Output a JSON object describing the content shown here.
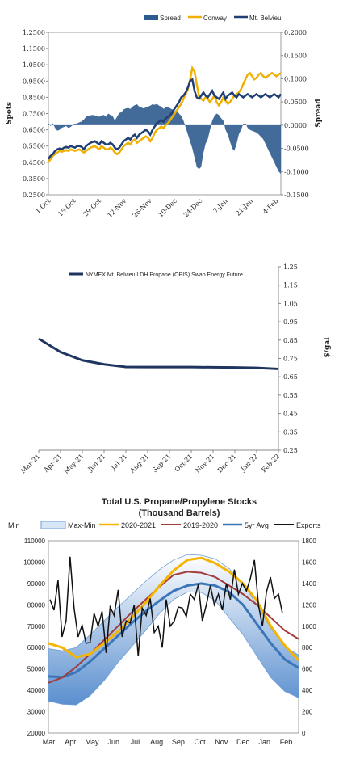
{
  "chart_data": [
    {
      "type": "line",
      "legend": [
        "Spread",
        "Conway",
        "Mt. Belvieu"
      ],
      "ylabel": "Spots",
      "y2label": "Spread",
      "ylim": [
        0.25,
        1.25
      ],
      "y2lim": [
        -0.15,
        0.2
      ],
      "yticks": [
        "0.2500",
        "0.3500",
        "0.4500",
        "0.5500",
        "0.6500",
        "0.7500",
        "0.8500",
        "0.9500",
        "1.0500",
        "1.1500",
        "1.2500"
      ],
      "y2ticks": [
        "-0.1500",
        "-0.1000",
        "-0.0500",
        "0.0000",
        "0.0500",
        "0.1000",
        "0.1500",
        "0.2000"
      ],
      "xticks": [
        "1-Oct",
        "15-Oct",
        "29-Oct",
        "12-Nov",
        "26-Nov",
        "10-Dec",
        "24-Dec",
        "7-Jan",
        "21-Jan",
        "4-Feb"
      ],
      "colors": {
        "spread": "#2e5b8f",
        "conway": "#f0b000",
        "belvieu": "#1f3f75"
      },
      "series": [
        {
          "name": "Mt. Belvieu",
          "x": [
            0,
            3,
            6,
            9,
            12,
            15,
            18,
            21,
            24,
            27,
            30,
            33,
            36,
            39,
            42,
            45,
            48,
            51,
            54,
            57,
            60,
            63,
            66,
            69,
            72,
            75,
            78,
            81,
            84,
            87,
            90,
            93,
            96,
            99,
            102,
            105,
            108,
            111,
            114,
            117,
            120,
            123,
            126,
            129,
            132,
            135,
            138,
            141,
            144,
            147,
            150,
            153,
            156,
            159,
            162,
            165,
            168,
            171,
            174,
            177,
            180,
            183,
            186,
            189,
            192,
            195,
            198,
            201,
            204,
            207,
            210,
            213,
            216,
            219,
            222,
            225,
            228,
            231,
            234,
            237,
            240,
            243,
            246,
            249,
            252,
            255,
            258,
            261,
            264,
            267,
            270,
            273,
            276,
            279,
            282,
            285,
            288,
            291,
            294,
            297,
            300,
            303,
            306,
            309,
            312,
            315
          ],
          "y": [
            0.47,
            0.49,
            0.5,
            0.52,
            0.53,
            0.535,
            0.53,
            0.54,
            0.545,
            0.54,
            0.55,
            0.545,
            0.54,
            0.55,
            0.55,
            0.545,
            0.53,
            0.55,
            0.56,
            0.57,
            0.575,
            0.58,
            0.57,
            0.56,
            0.58,
            0.57,
            0.56,
            0.56,
            0.57,
            0.56,
            0.54,
            0.53,
            0.54,
            0.56,
            0.58,
            0.59,
            0.6,
            0.59,
            0.61,
            0.62,
            0.6,
            0.62,
            0.63,
            0.64,
            0.65,
            0.64,
            0.62,
            0.65,
            0.67,
            0.69,
            0.7,
            0.71,
            0.7,
            0.72,
            0.73,
            0.74,
            0.76,
            0.78,
            0.8,
            0.82,
            0.85,
            0.86,
            0.88,
            0.91,
            0.95,
            0.96,
            0.89,
            0.85,
            0.84,
            0.86,
            0.88,
            0.86,
            0.85,
            0.87,
            0.89,
            0.86,
            0.85,
            0.84,
            0.86,
            0.88,
            0.84,
            0.86,
            0.87,
            0.88,
            0.86,
            0.85,
            0.87,
            0.86,
            0.85,
            0.86,
            0.87,
            0.86,
            0.85,
            0.86,
            0.87,
            0.86,
            0.85,
            0.86,
            0.87,
            0.86,
            0.85,
            0.86,
            0.87,
            0.86,
            0.85,
            0.87
          ]
        },
        {
          "name": "Conway",
          "x": [
            0,
            3,
            6,
            9,
            12,
            15,
            18,
            21,
            24,
            27,
            30,
            33,
            36,
            39,
            42,
            45,
            48,
            51,
            54,
            57,
            60,
            63,
            66,
            69,
            72,
            75,
            78,
            81,
            84,
            87,
            90,
            93,
            96,
            99,
            102,
            105,
            108,
            111,
            114,
            117,
            120,
            123,
            126,
            129,
            132,
            135,
            138,
            141,
            144,
            147,
            150,
            153,
            156,
            159,
            162,
            165,
            168,
            171,
            174,
            177,
            180,
            183,
            186,
            189,
            192,
            195,
            198,
            201,
            204,
            207,
            210,
            213,
            216,
            219,
            222,
            225,
            228,
            231,
            234,
            237,
            240,
            243,
            246,
            249,
            252,
            255,
            258,
            261,
            264,
            267,
            270,
            273,
            276,
            279,
            282,
            285,
            288,
            291,
            294,
            297,
            300,
            303,
            306,
            309,
            312,
            315
          ],
          "y": [
            0.45,
            0.47,
            0.49,
            0.5,
            0.51,
            0.52,
            0.515,
            0.52,
            0.525,
            0.52,
            0.53,
            0.525,
            0.52,
            0.525,
            0.53,
            0.52,
            0.51,
            0.52,
            0.53,
            0.54,
            0.545,
            0.55,
            0.54,
            0.53,
            0.55,
            0.54,
            0.53,
            0.53,
            0.54,
            0.53,
            0.51,
            0.5,
            0.51,
            0.53,
            0.55,
            0.56,
            0.57,
            0.56,
            0.58,
            0.59,
            0.57,
            0.58,
            0.59,
            0.6,
            0.61,
            0.6,
            0.58,
            0.6,
            0.63,
            0.65,
            0.66,
            0.67,
            0.66,
            0.68,
            0.69,
            0.71,
            0.73,
            0.75,
            0.77,
            0.79,
            0.81,
            0.84,
            0.87,
            0.9,
            0.96,
            1.03,
            1.01,
            0.93,
            0.86,
            0.84,
            0.83,
            0.85,
            0.84,
            0.82,
            0.84,
            0.86,
            0.82,
            0.8,
            0.82,
            0.85,
            0.83,
            0.81,
            0.82,
            0.84,
            0.86,
            0.87,
            0.88,
            0.9,
            0.93,
            0.96,
            0.99,
            1.0,
            0.98,
            0.96,
            0.97,
            0.99,
            1.0,
            0.98,
            0.97,
            0.98,
            0.99,
            1.0,
            0.99,
            0.98,
            0.99,
            1.0
          ]
        },
        {
          "name": "Spread",
          "x": [
            0,
            3,
            6,
            9,
            12,
            15,
            18,
            21,
            24,
            27,
            30,
            33,
            36,
            39,
            42,
            45,
            48,
            51,
            54,
            57,
            60,
            63,
            66,
            69,
            72,
            75,
            78,
            81,
            84,
            87,
            90,
            93,
            96,
            99,
            102,
            105,
            108,
            111,
            114,
            117,
            120,
            123,
            126,
            129,
            132,
            135,
            138,
            141,
            144,
            147,
            150,
            153,
            156,
            159,
            162,
            165,
            168,
            171,
            174,
            177,
            180,
            183,
            186,
            189,
            192,
            195,
            198,
            201,
            204,
            207,
            210,
            213,
            216,
            219,
            222,
            225,
            228,
            231,
            234,
            237,
            240,
            243,
            246,
            249,
            252,
            255,
            258,
            261,
            264,
            267,
            270,
            273,
            276,
            279,
            282,
            285,
            288,
            291,
            294,
            297,
            300,
            303,
            306,
            309,
            312,
            315
          ],
          "y": [
            0.003,
            -0.002,
            0.004,
            -0.006,
            -0.012,
            -0.01,
            -0.006,
            -0.004,
            -0.002,
            -0.006,
            -0.004,
            0.0,
            0.002,
            0.004,
            0.006,
            0.008,
            0.012,
            0.018,
            0.02,
            0.021,
            0.022,
            0.021,
            0.02,
            0.018,
            0.021,
            0.022,
            0.018,
            0.025,
            0.022,
            0.02,
            0.01,
            0.018,
            0.026,
            0.028,
            0.034,
            0.036,
            0.037,
            0.035,
            0.04,
            0.043,
            0.045,
            0.04,
            0.038,
            0.036,
            0.038,
            0.04,
            0.042,
            0.045,
            0.044,
            0.046,
            0.042,
            0.04,
            0.035,
            0.038,
            0.04,
            0.036,
            0.034,
            0.03,
            0.032,
            0.025,
            0.02,
            0.01,
            -0.005,
            -0.02,
            -0.035,
            -0.05,
            -0.07,
            -0.09,
            -0.095,
            -0.09,
            -0.06,
            -0.04,
            -0.03,
            -0.01,
            0.01,
            0.02,
            0.025,
            0.022,
            0.015,
            0.01,
            -0.01,
            -0.02,
            -0.035,
            -0.05,
            -0.055,
            -0.04,
            -0.02,
            -0.01,
            0.002,
            0.004,
            -0.006,
            -0.01,
            -0.012,
            -0.014,
            -0.016,
            -0.02,
            -0.025,
            -0.03,
            -0.04,
            -0.05,
            -0.06,
            -0.07,
            -0.08,
            -0.09,
            -0.1,
            -0.105
          ]
        }
      ]
    },
    {
      "type": "line",
      "legend": [
        "NYMEX Mt. Belvieu LDH Propane (OPIS) Swap Energy Future"
      ],
      "ylabel": "$/gal",
      "ylim": [
        0.25,
        1.25
      ],
      "yticks": [
        "0.25",
        "0.35",
        "0.45",
        "0.55",
        "0.65",
        "0.75",
        "0.85",
        "0.95",
        "1.05",
        "1.15",
        "1.25"
      ],
      "categories": [
        "Mar-21",
        "Apr-21",
        "May-21",
        "Jun-21",
        "Jul-21",
        "Aug-21",
        "Sep-21",
        "Oct-21",
        "Nov-21",
        "Dec-21",
        "Jan-22",
        "Feb-22"
      ],
      "values": [
        0.858,
        0.785,
        0.74,
        0.718,
        0.704,
        0.703,
        0.703,
        0.703,
        0.702,
        0.701,
        0.699,
        0.693
      ],
      "color": "#1f3560"
    },
    {
      "type": "line",
      "title": "Total U.S. Propane/Propylene Stocks",
      "subtitle": "(Thousand Barrels)",
      "legend": [
        "Min",
        "Max-Min",
        "2020-2021",
        "2019-2020",
        "5yr Avg",
        "Exports"
      ],
      "ylim": [
        20000,
        110000
      ],
      "y2lim": [
        0,
        1800
      ],
      "yticks": [
        "20000",
        "30000",
        "40000",
        "50000",
        "60000",
        "70000",
        "80000",
        "90000",
        "100000",
        "110000"
      ],
      "y2ticks": [
        "0",
        "200",
        "400",
        "600",
        "800",
        "1000",
        "1200",
        "1400",
        "1600",
        "1800"
      ],
      "xticks": [
        "Mar",
        "Apr",
        "May",
        "Jun",
        "Jul",
        "Aug",
        "Sep",
        "Oct",
        "Nov",
        "Dec",
        "Jan",
        "Feb"
      ],
      "colors": {
        "band": "#6f9ed4",
        "y2021": "#f5b400",
        "y2019": "#a33b3b",
        "avg": "#3a76b8",
        "exports": "#111111"
      },
      "band_min": [
        35000,
        33500,
        33200,
        37500,
        44500,
        53000,
        60500,
        68000,
        76000,
        82500,
        86000,
        85800,
        82000,
        74000,
        66000,
        56000,
        46000,
        39500,
        36500
      ],
      "band_max": [
        59500,
        58500,
        60000,
        66000,
        72500,
        79000,
        85000,
        91000,
        96500,
        101000,
        103500,
        103200,
        101500,
        97000,
        90000,
        80000,
        69000,
        60500,
        56500
      ],
      "avg": [
        46500,
        46200,
        48500,
        53500,
        59500,
        65500,
        71500,
        77000,
        82000,
        86500,
        89000,
        90000,
        89000,
        86000,
        80000,
        71000,
        62000,
        54500,
        50500
      ],
      "y2019_20": [
        43500,
        46000,
        51000,
        57000,
        63500,
        70000,
        76500,
        82500,
        88500,
        94000,
        95500,
        95000,
        93000,
        89000,
        85000,
        80000,
        74000,
        68000,
        64000
      ],
      "y2020_21": [
        62000,
        60000,
        55500,
        57000,
        62000,
        67500,
        74000,
        81000,
        89000,
        96000,
        101000,
        102000,
        99500,
        95500,
        90000,
        82000,
        70000,
        61000,
        54000
      ],
      "exports": [
        1250,
        1150,
        1430,
        900,
        1050,
        1650,
        1170,
        900,
        1010,
        840,
        850,
        1120,
        1000,
        1140,
        750,
        1180,
        1100,
        1340,
        900,
        1050,
        1030,
        1200,
        720,
        1170,
        1100,
        1260,
        940,
        1000,
        800,
        1250,
        1000,
        1050,
        1180,
        1170,
        1090,
        1300,
        1250,
        1390,
        1050,
        1200,
        1380,
        1200,
        1300,
        1150,
        1400,
        1250,
        1530,
        1300,
        1400,
        1330,
        1450,
        1620,
        1200,
        1000,
        1320,
        1460,
        1260,
        1300,
        1120
      ]
    }
  ]
}
